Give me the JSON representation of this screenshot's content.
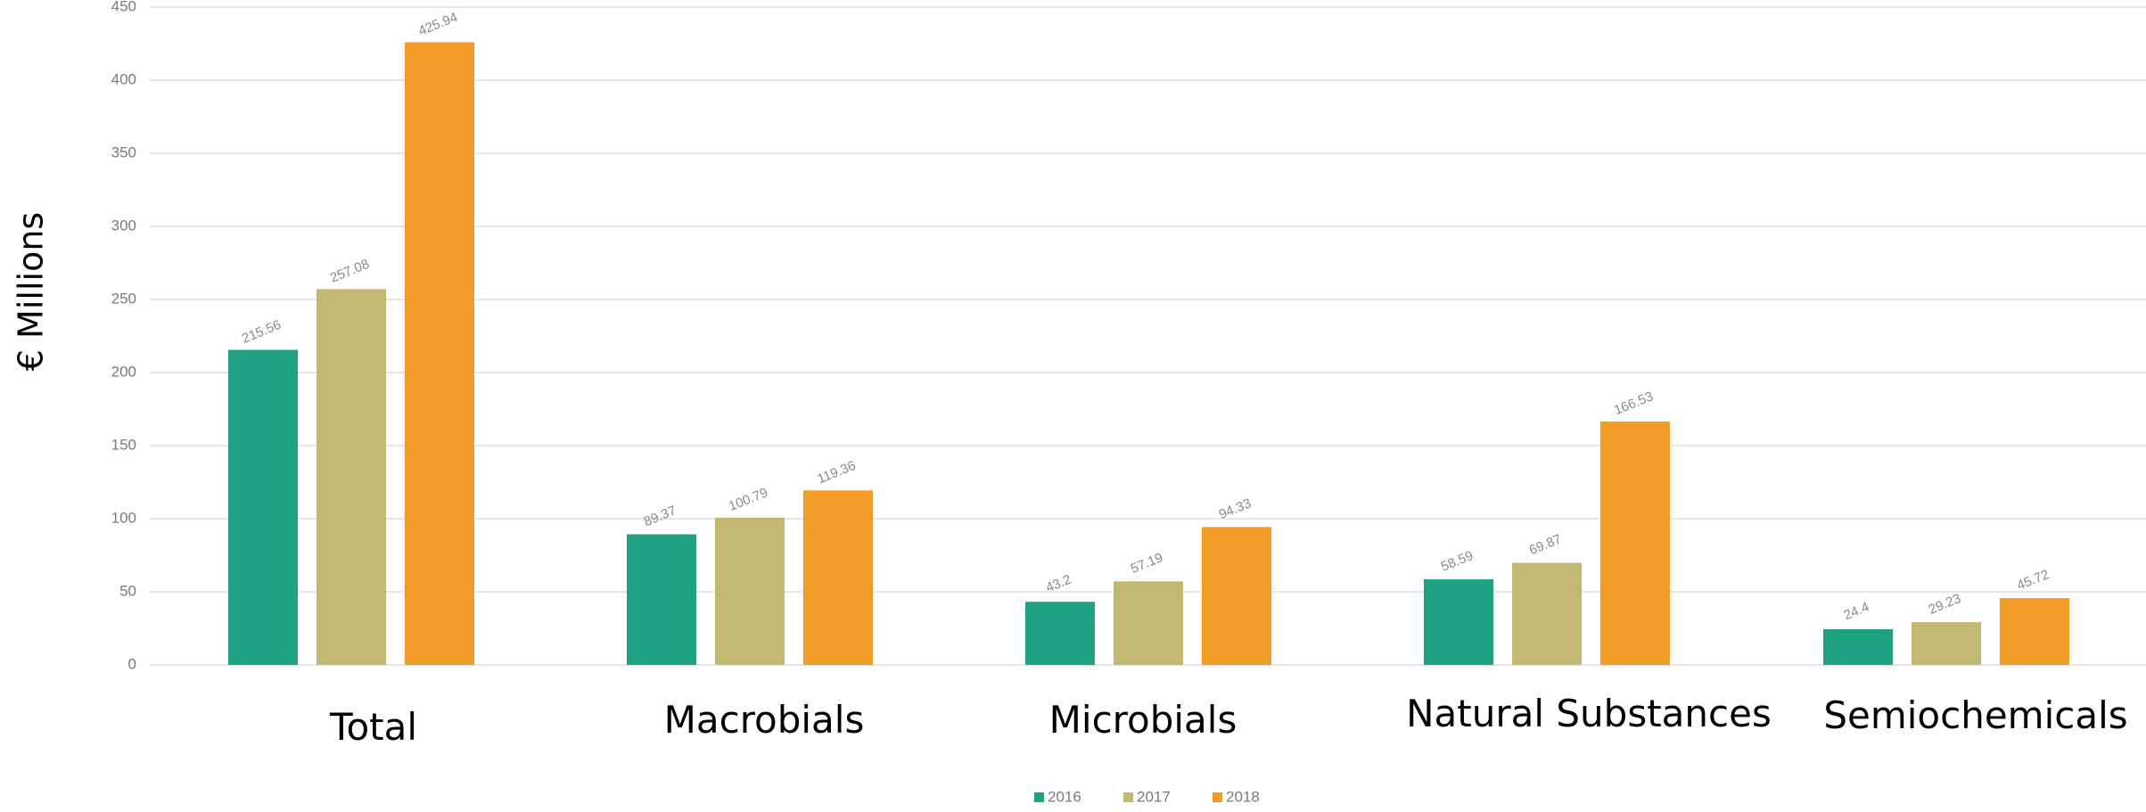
{
  "chart_data": {
    "type": "bar",
    "title": "",
    "xlabel": "",
    "ylabel": "€ Millions",
    "ylim": [
      0,
      450
    ],
    "yticks": [
      0,
      50,
      100,
      150,
      200,
      250,
      300,
      350,
      400,
      450
    ],
    "grid": true,
    "legend_position": "bottom-center",
    "categories": [
      "Total",
      "Macrobials",
      "Microbials",
      "Natural Substances",
      "Semiochemicals"
    ],
    "series": [
      {
        "name": "2016",
        "color": "#21a184",
        "values": [
          215.56,
          89.37,
          43.2,
          58.59,
          24.4
        ]
      },
      {
        "name": "2017",
        "color": "#c2b872",
        "values": [
          257.08,
          100.79,
          57.19,
          69.87,
          29.23
        ]
      },
      {
        "name": "2018",
        "color": "#f29c27",
        "values": [
          425.94,
          119.36,
          94.33,
          166.53,
          45.72
        ]
      }
    ],
    "value_labels": [
      [
        "215.56",
        "89.37",
        "43.2",
        "58.59",
        "24.4"
      ],
      [
        "257.08",
        "100.79",
        "57.19",
        "69.87",
        "29.23"
      ],
      [
        "425.94",
        "119.36",
        "94.33",
        "166.53",
        "45.72"
      ]
    ]
  }
}
